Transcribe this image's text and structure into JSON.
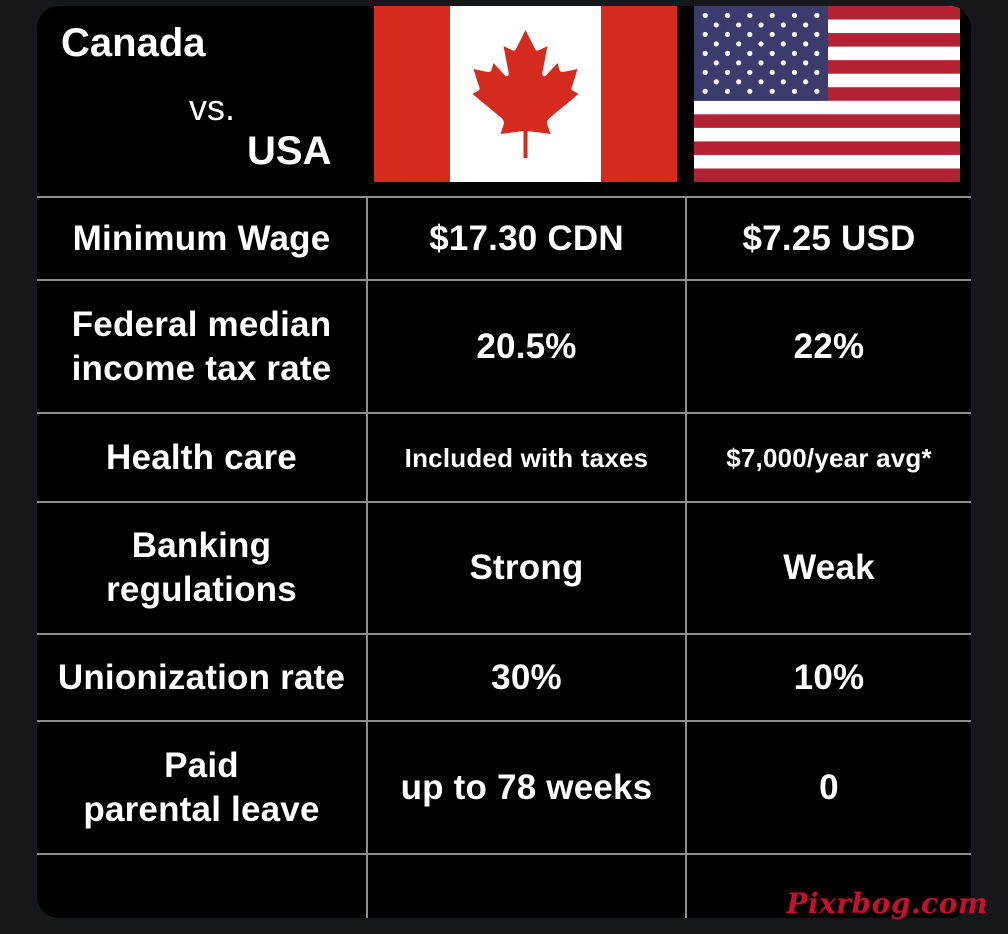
{
  "header": {
    "title_line1": "Canada",
    "title_line2": "vs.",
    "title_line3": "USA",
    "flag_canada": "canada-flag",
    "flag_usa": "usa-flag"
  },
  "rows": [
    {
      "label": "Minimum Wage",
      "canada": "$17.30 CDN",
      "usa": "$7.25 USD"
    },
    {
      "label": "Federal median\nincome tax rate",
      "canada": "20.5%",
      "usa": "22%"
    },
    {
      "label": "Health care",
      "canada": "Included with taxes",
      "usa": "$7,000/year avg*"
    },
    {
      "label": "Banking\nregulations",
      "canada": "Strong",
      "usa": "Weak"
    },
    {
      "label": "Unionization rate",
      "canada": "30%",
      "usa": "10%"
    },
    {
      "label": "Paid\nparental leave",
      "canada": "up to 78 weeks",
      "usa": "0"
    },
    {
      "label": "",
      "canada": "",
      "usa": ""
    }
  ],
  "watermark": "Pixrbog.com",
  "colors": {
    "background": "#000000",
    "grid": "#8d8d8d",
    "canada_red": "#d52b1e",
    "usa_red": "#b22234",
    "usa_blue": "#3c3b6e",
    "watermark": "#c8102e"
  }
}
